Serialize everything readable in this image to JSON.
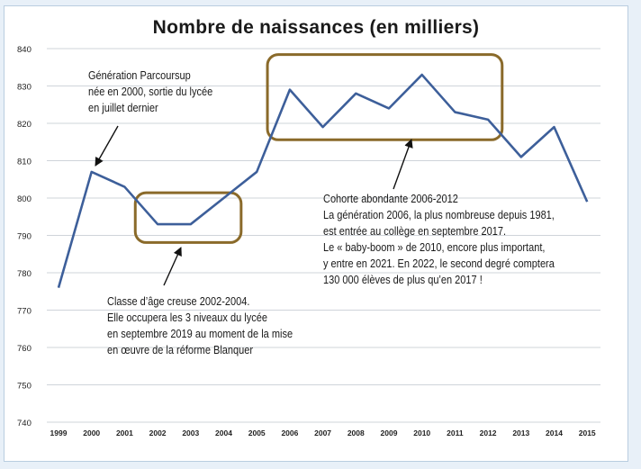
{
  "chart_data": {
    "type": "line",
    "title": "Nombre de naissances (en milliers)",
    "x": [
      1999,
      2000,
      2001,
      2002,
      2003,
      2004,
      2005,
      2006,
      2007,
      2008,
      2009,
      2010,
      2011,
      2012,
      2013,
      2014,
      2015
    ],
    "x_ticks": [
      "1999",
      "2000",
      "2001",
      "2002",
      "2003",
      "2004",
      "2005",
      "2006",
      "2007",
      "2008",
      "2009",
      "2010",
      "2011",
      "2012",
      "2013",
      "2014",
      "2015"
    ],
    "series": [
      {
        "values": [
          776,
          807,
          803,
          793,
          793,
          800,
          807,
          829,
          819,
          828,
          824,
          833,
          823,
          821,
          811,
          819,
          799
        ]
      }
    ],
    "y_ticks": [
      "740",
      "750",
      "760",
      "770",
      "780",
      "790",
      "800",
      "810",
      "820",
      "830",
      "840"
    ],
    "ylim": [
      740,
      840
    ],
    "grid": true,
    "line_color": "#3d5f9a",
    "box_color": "#8a6a2a",
    "annotations": [
      {
        "lines": [
          "Génération Parcoursup",
          "née en 2000, sortie du lycée",
          "en juillet dernier"
        ]
      },
      {
        "lines": [
          "Classe d’âge creuse 2002-2004.",
          "Elle occupera les 3 niveaux du lycée",
          "en septembre 2019 au moment de la mise",
          "en œuvre de la réforme Blanquer"
        ]
      },
      {
        "lines": [
          "Cohorte abondante 2006-2012",
          "La génération 2006, la plus nombreuse depuis 1981,",
          "est entrée au collège en septembre 2017.",
          "Le « baby-boom » de 2010, encore plus important,",
          "y entre en 2021. En 2022, le second degré comptera",
          "130 000 élèves de plus qu’en 2017 !"
        ]
      }
    ]
  }
}
